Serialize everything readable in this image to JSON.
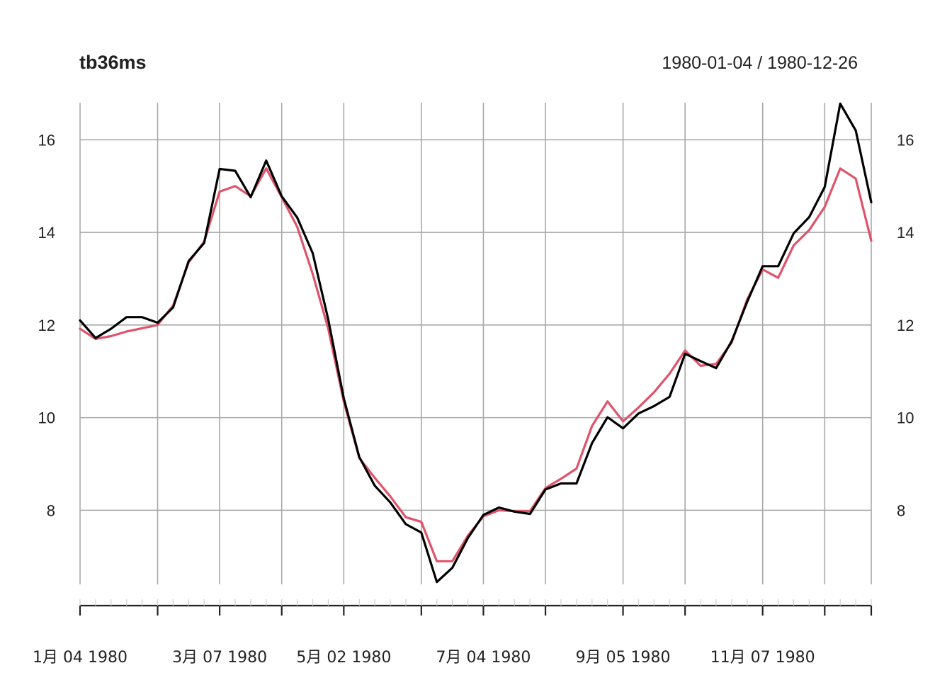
{
  "chart_data": {
    "type": "line",
    "title": "tb36ms",
    "date_range": "1980-01-04 / 1980-12-26",
    "grid": true,
    "y_axis_sides": "both",
    "ylim": [
      6.4,
      16.8
    ],
    "y_ticks": [
      {
        "value": 8,
        "label": "8"
      },
      {
        "value": 10,
        "label": "10"
      },
      {
        "value": 12,
        "label": "12"
      },
      {
        "value": 14,
        "label": "14"
      },
      {
        "value": 16,
        "label": "16"
      }
    ],
    "x_range": [
      "1980-01-04",
      "1980-12-26"
    ],
    "x_ticks": [
      {
        "date": "1980-01-04",
        "label": "1月 04 1980"
      },
      {
        "date": "1980-02-08",
        "label": ""
      },
      {
        "date": "1980-03-07",
        "label": "3月 07 1980"
      },
      {
        "date": "1980-04-04",
        "label": ""
      },
      {
        "date": "1980-05-02",
        "label": "5月 02 1980"
      },
      {
        "date": "1980-06-06",
        "label": ""
      },
      {
        "date": "1980-07-04",
        "label": "7月 04 1980"
      },
      {
        "date": "1980-08-01",
        "label": ""
      },
      {
        "date": "1980-09-05",
        "label": "9月 05 1980"
      },
      {
        "date": "1980-10-03",
        "label": ""
      },
      {
        "date": "1980-11-07",
        "label": "11月 07 1980"
      },
      {
        "date": "1980-12-05",
        "label": ""
      },
      {
        "date": "1980-12-26",
        "label": ""
      }
    ],
    "x": [
      "1980-01-04",
      "1980-01-11",
      "1980-01-18",
      "1980-01-25",
      "1980-02-01",
      "1980-02-08",
      "1980-02-15",
      "1980-02-22",
      "1980-02-29",
      "1980-03-07",
      "1980-03-14",
      "1980-03-21",
      "1980-03-28",
      "1980-04-04",
      "1980-04-11",
      "1980-04-18",
      "1980-04-25",
      "1980-05-02",
      "1980-05-09",
      "1980-05-16",
      "1980-05-23",
      "1980-05-30",
      "1980-06-06",
      "1980-06-13",
      "1980-06-20",
      "1980-06-27",
      "1980-07-04",
      "1980-07-11",
      "1980-07-18",
      "1980-07-25",
      "1980-08-01",
      "1980-08-08",
      "1980-08-15",
      "1980-08-22",
      "1980-08-29",
      "1980-09-05",
      "1980-09-12",
      "1980-09-19",
      "1980-09-26",
      "1980-10-03",
      "1980-10-10",
      "1980-10-17",
      "1980-10-24",
      "1980-10-31",
      "1980-11-07",
      "1980-11-14",
      "1980-11-21",
      "1980-11-28",
      "1980-12-05",
      "1980-12-12",
      "1980-12-19",
      "1980-12-26"
    ],
    "series": [
      {
        "color": "#df536b",
        "values": [
          11.92,
          11.7,
          11.76,
          11.86,
          11.93,
          12.0,
          12.42,
          13.35,
          13.8,
          14.88,
          15.0,
          14.78,
          15.38,
          14.76,
          14.12,
          13.1,
          11.92,
          10.35,
          9.13,
          8.7,
          8.3,
          7.85,
          7.75,
          6.9,
          6.9,
          7.45,
          7.87,
          8.0,
          7.98,
          7.98,
          8.48,
          8.68,
          8.9,
          9.82,
          10.35,
          9.92,
          10.22,
          10.55,
          10.95,
          11.45,
          11.12,
          11.16,
          11.62,
          12.55,
          13.2,
          13.02,
          13.72,
          14.05,
          14.55,
          15.38,
          15.16,
          13.82
        ]
      },
      {
        "color": "#000000",
        "values": [
          12.1,
          11.72,
          11.92,
          12.17,
          12.17,
          12.05,
          12.38,
          13.38,
          13.77,
          15.37,
          15.33,
          14.76,
          15.55,
          14.78,
          14.32,
          13.55,
          12.12,
          10.42,
          9.15,
          8.53,
          8.17,
          7.7,
          7.52,
          6.45,
          6.76,
          7.4,
          7.9,
          8.06,
          7.97,
          7.92,
          8.45,
          8.58,
          8.58,
          9.45,
          10.01,
          9.77,
          10.09,
          10.25,
          10.45,
          11.38,
          11.22,
          11.07,
          11.65,
          12.5,
          13.27,
          13.27,
          13.98,
          14.33,
          14.98,
          16.78,
          16.2,
          14.65
        ]
      }
    ]
  }
}
